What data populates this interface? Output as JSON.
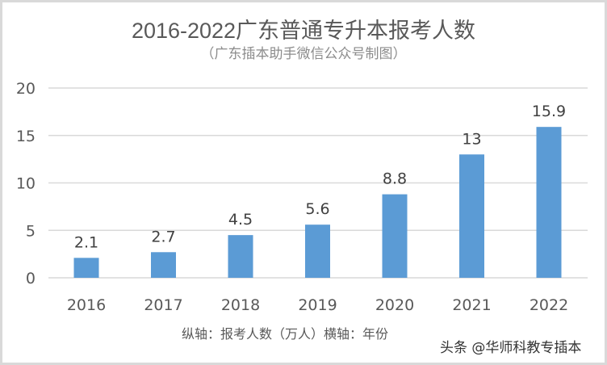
{
  "chart_data": {
    "type": "bar",
    "title": "2016-2022广东普通专升本报考人数",
    "subtitle": "（广东插本助手微信公众号制图）",
    "categories": [
      "2016",
      "2017",
      "2018",
      "2019",
      "2020",
      "2021",
      "2022"
    ],
    "values": [
      2.1,
      2.7,
      4.5,
      5.6,
      8.8,
      13,
      15.9
    ],
    "data_labels": [
      "2.1",
      "2.7",
      "4.5",
      "5.6",
      "8.8",
      "13",
      "15.9"
    ],
    "ylim": [
      0,
      20
    ],
    "yticks": [
      "0",
      "5",
      "10",
      "15",
      "20"
    ],
    "grid": true,
    "axis_note": "纵轴：报考人数（万人）横轴：年份",
    "bar_color": "#5b9bd5"
  },
  "watermark": "头条 @华师科教专插本"
}
